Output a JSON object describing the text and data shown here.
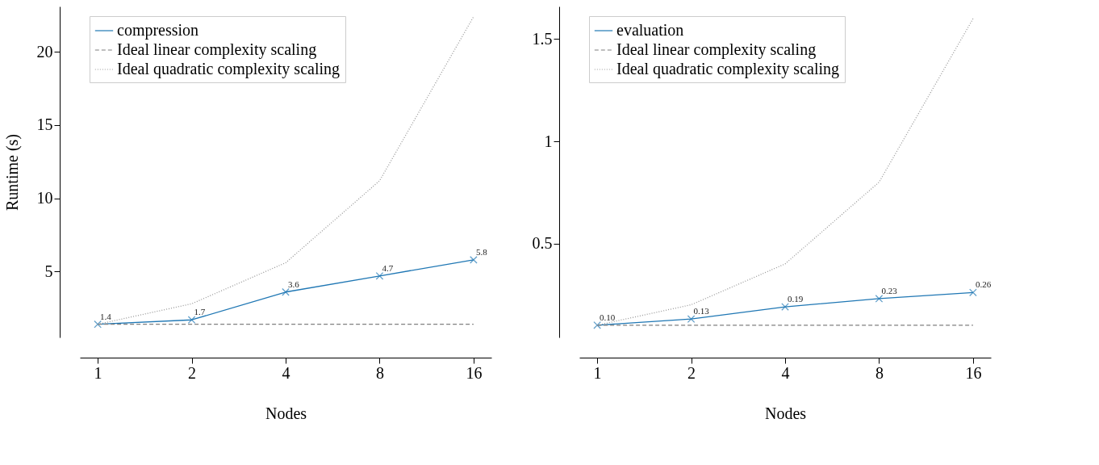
{
  "chart_data": [
    {
      "type": "line",
      "xlabel": "Nodes",
      "ylabel": "Runtime (s)",
      "categories": [
        "1",
        "2",
        "4",
        "8",
        "16"
      ],
      "ylim": [
        0.5,
        23.1
      ],
      "yticks": [
        5,
        10,
        15,
        20
      ],
      "grid": false,
      "legend": "top left",
      "series": [
        {
          "name": "compression",
          "color": "#1f77b4",
          "values": [
            1.4,
            1.7,
            3.6,
            4.7,
            5.8
          ],
          "marker": "cross",
          "line_style": "solid",
          "value_labels": [
            "1.4",
            "1.7",
            "3.6",
            "4.7",
            "5.8"
          ]
        },
        {
          "name": "Ideal linear complexity scaling",
          "color": "#808080",
          "values": [
            1.4,
            1.4,
            1.4,
            1.4,
            1.4
          ],
          "marker": "none",
          "line_style": "dashed"
        },
        {
          "name": "Ideal quadratic complexity scaling",
          "color": "#999999",
          "values": [
            1.4,
            2.8,
            5.6,
            11.2,
            22.4
          ],
          "marker": "none",
          "line_style": "dotted"
        }
      ]
    },
    {
      "type": "line",
      "xlabel": "Nodes",
      "categories": [
        "1",
        "2",
        "4",
        "8",
        "16"
      ],
      "ylim": [
        0.04,
        1.66
      ],
      "yticks": [
        0.5,
        1,
        1.5
      ],
      "grid": false,
      "legend": "top left",
      "series": [
        {
          "name": "evaluation",
          "color": "#1f77b4",
          "values": [
            0.1,
            0.13,
            0.19,
            0.23,
            0.26
          ],
          "marker": "cross",
          "line_style": "solid",
          "value_labels": [
            "0.10",
            "0.13",
            "0.19",
            "0.23",
            "0.26"
          ]
        },
        {
          "name": "Ideal linear complexity scaling",
          "color": "#808080",
          "values": [
            0.1,
            0.1,
            0.1,
            0.1,
            0.1
          ],
          "marker": "none",
          "line_style": "dashed"
        },
        {
          "name": "Ideal quadratic complexity scaling",
          "color": "#999999",
          "values": [
            0.1,
            0.2,
            0.4,
            0.8,
            1.6
          ],
          "marker": "none",
          "line_style": "dotted"
        }
      ]
    }
  ]
}
